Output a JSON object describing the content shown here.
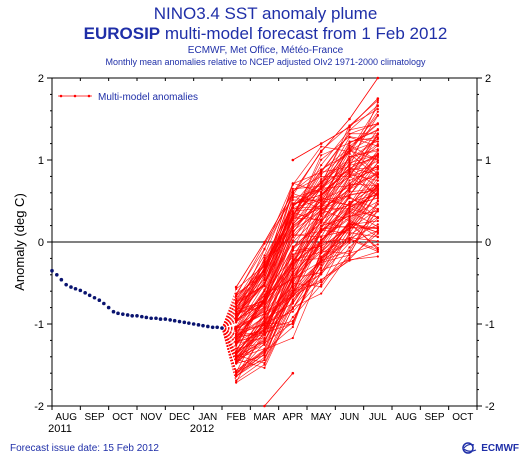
{
  "header": {
    "title": "NINO3.4 SST anomaly plume",
    "subtitle_bold": "EUROSIP",
    "subtitle_rest": " multi-model forecast from 1 Feb 2012",
    "credits": "ECMWF, Met Office, Météo-France",
    "description": "Monthly mean anomalies relative to NCEP adjusted OIv2 1971-2000 climatology"
  },
  "footer": {
    "issue_date": "Forecast issue date: 15 Feb 2012",
    "logo_text": "ECMWF",
    "logo_icon": "ecmwf-logo-icon"
  },
  "colors": {
    "observed": "#0a1470",
    "forecast": "#ff0000",
    "text": "#1f2fa8"
  },
  "chart_data": {
    "type": "line",
    "ylabel": "Anomaly (deg C)",
    "ylim": [
      -2,
      2
    ],
    "yticks": [
      -2,
      -1,
      0,
      1,
      2
    ],
    "ytick_labels": [
      "-2",
      "-1",
      "0",
      "1",
      "2"
    ],
    "month_labels": [
      "AUG",
      "SEP",
      "OCT",
      "NOV",
      "DEC",
      "JAN",
      "FEB",
      "MAR",
      "APR",
      "MAY",
      "JUN",
      "JUL",
      "AUG",
      "SEP",
      "OCT"
    ],
    "year_labels": [
      {
        "label": "2011",
        "month_index": 0
      },
      {
        "label": "2012",
        "month_index": 5
      }
    ],
    "legend": {
      "label": "Multi-model anomalies",
      "position": "top-left"
    },
    "observed": {
      "x": [
        -0.5,
        -0.33,
        -0.17,
        0,
        0.17,
        0.33,
        0.5,
        0.67,
        0.83,
        1,
        1.17,
        1.33,
        1.5,
        1.67,
        1.83,
        2,
        2.17,
        2.33,
        2.5,
        2.67,
        2.83,
        3,
        3.17,
        3.33,
        3.5,
        3.67,
        3.83,
        4,
        4.17,
        4.33,
        4.5,
        4.67,
        4.83,
        5,
        5.17,
        5.33,
        5.5
      ],
      "y": [
        -0.35,
        -0.4,
        -0.46,
        -0.52,
        -0.55,
        -0.57,
        -0.59,
        -0.62,
        -0.65,
        -0.68,
        -0.71,
        -0.75,
        -0.8,
        -0.85,
        -0.87,
        -0.88,
        -0.89,
        -0.9,
        -0.9,
        -0.91,
        -0.92,
        -0.93,
        -0.93,
        -0.94,
        -0.94,
        -0.95,
        -0.96,
        -0.97,
        -0.98,
        -0.99,
        -1.0,
        -1.01,
        -1.02,
        -1.03,
        -1.04,
        -1.04,
        -1.05
      ]
    },
    "forecast": {
      "start_x": 5.5,
      "start_y": -1.05,
      "member_count": 120,
      "x": [
        6,
        7,
        8,
        9,
        10,
        11
      ],
      "lower": [
        -1.75,
        -1.55,
        -1.2,
        -0.65,
        -0.35,
        -0.25
      ],
      "upper": [
        -0.5,
        0.05,
        1.0,
        1.2,
        1.55,
        1.85
      ],
      "outliers": [
        {
          "x": [
            7,
            8
          ],
          "y": [
            -2.0,
            -1.6
          ]
        },
        {
          "x": [
            8,
            9,
            10,
            11
          ],
          "y": [
            1.0,
            1.2,
            1.4,
            1.75
          ]
        },
        {
          "x": [
            6,
            7,
            8,
            9,
            10,
            11
          ],
          "y": [
            -0.55,
            0.0,
            0.6,
            1.1,
            1.5,
            2.0
          ]
        }
      ]
    }
  }
}
